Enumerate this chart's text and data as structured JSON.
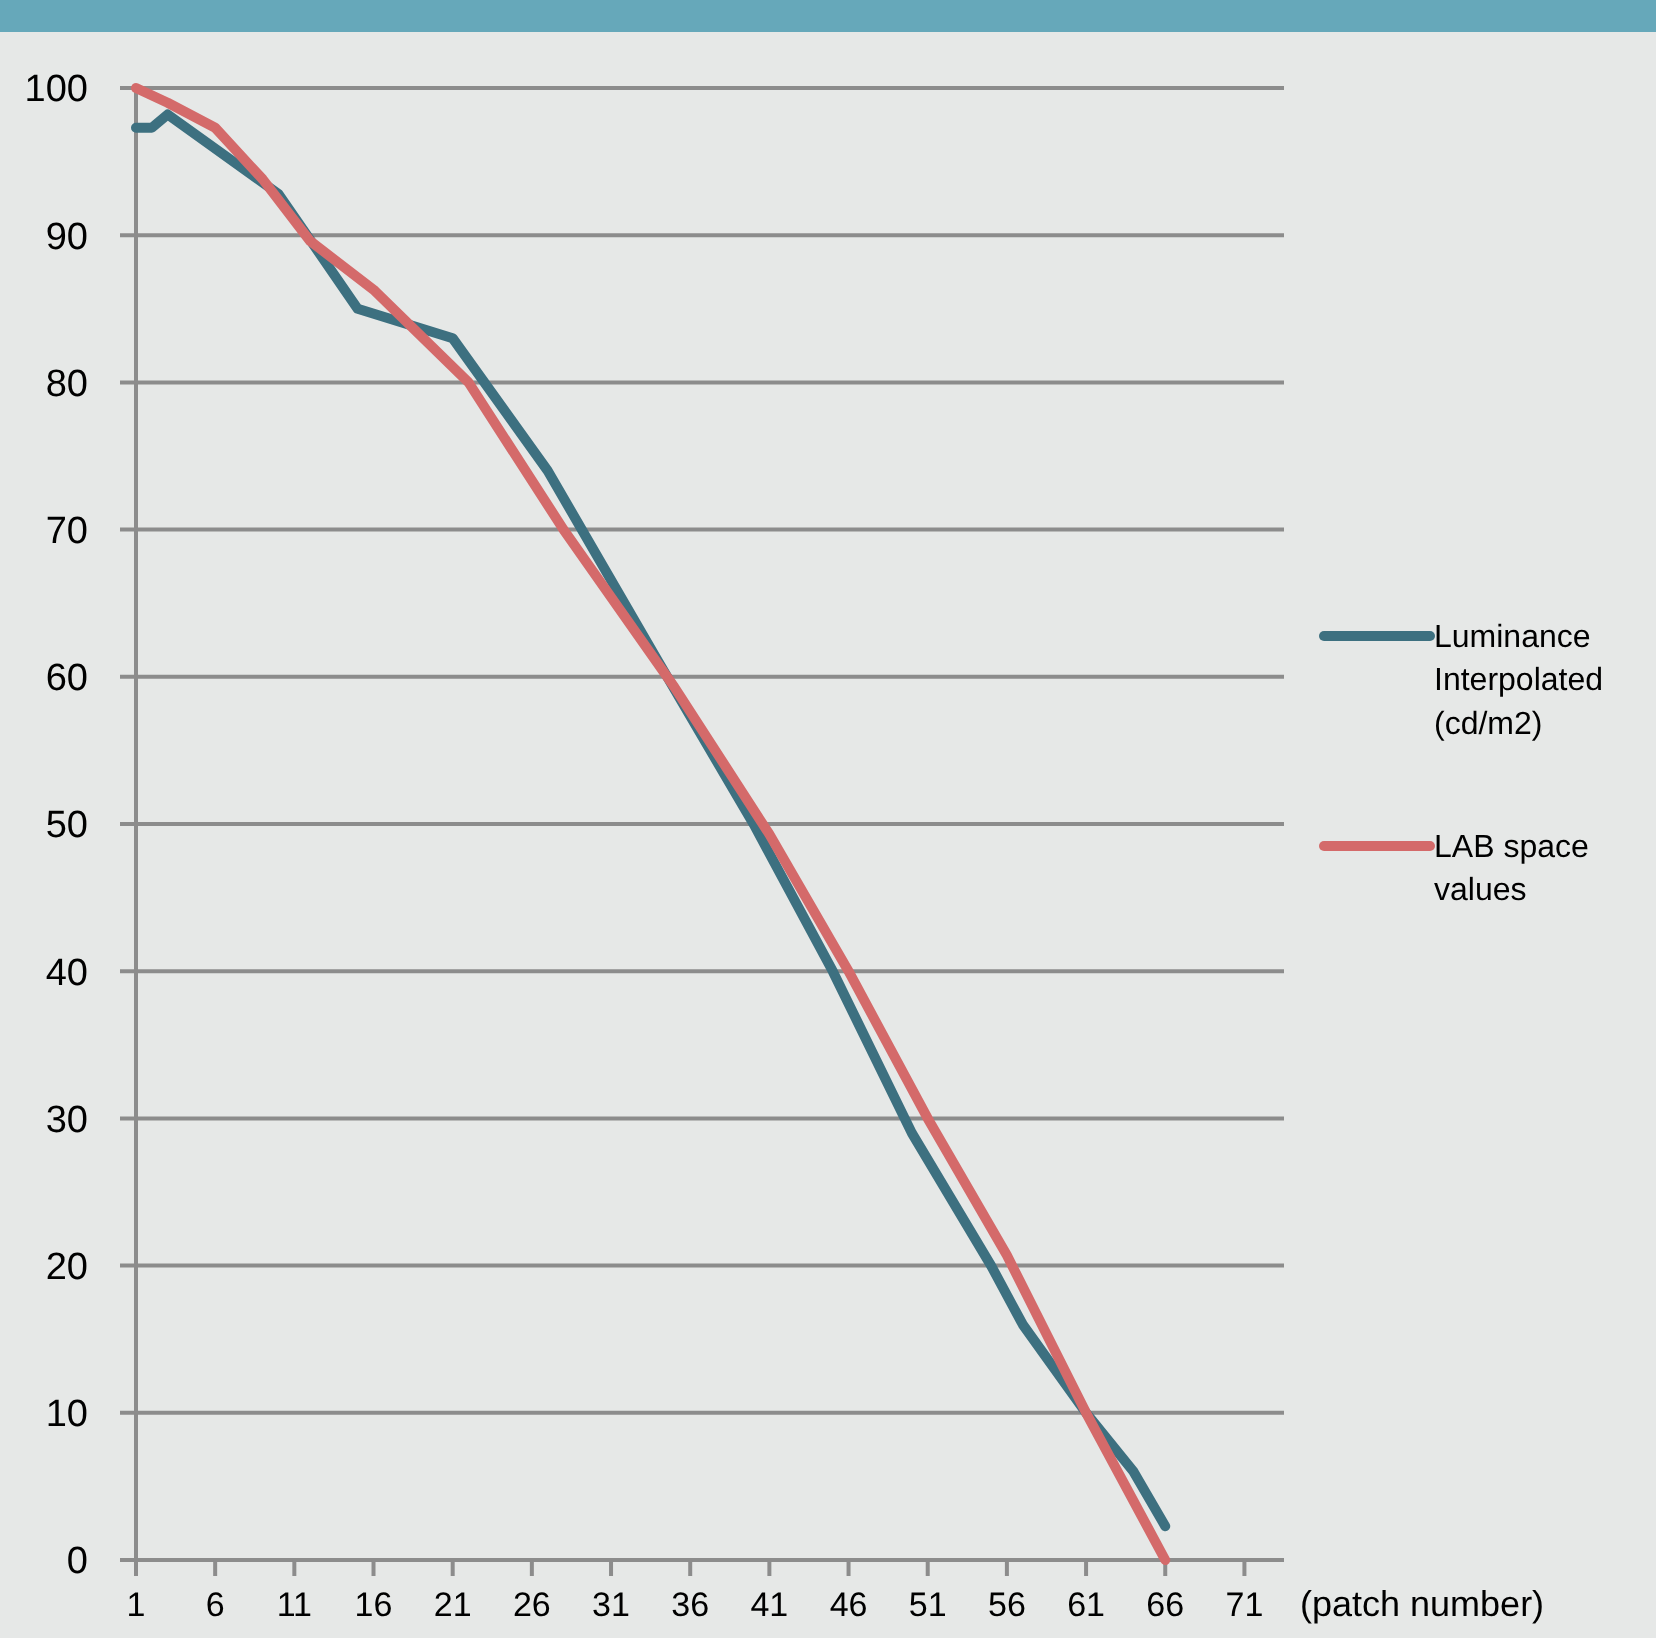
{
  "chart_data": {
    "type": "line",
    "xlabel": "(patch number)",
    "xlim": [
      1,
      73.5
    ],
    "xticks": [
      1,
      6,
      11,
      16,
      21,
      26,
      31,
      36,
      41,
      46,
      51,
      56,
      61,
      66,
      71
    ],
    "ylim": [
      0,
      100
    ],
    "yticks": [
      0,
      10,
      20,
      30,
      40,
      50,
      60,
      70,
      80,
      90,
      100
    ],
    "grid": "y",
    "legend": "right",
    "marker": "none",
    "line_style": "solid",
    "series": [
      {
        "name": "Luminance Interpolated (cd/m2)",
        "color": "#3d7080",
        "x": [
          1,
          2,
          3,
          10,
          15,
          21,
          27,
          34,
          40,
          45,
          50,
          55,
          57,
          61,
          64,
          66
        ],
        "values": [
          97.3,
          97.3,
          98.2,
          92.8,
          85,
          83,
          74,
          61,
          50,
          40,
          29,
          20,
          16,
          10,
          6,
          2.3
        ]
      },
      {
        "name": "LAB space values",
        "color": "#d46a6a",
        "x": [
          1,
          3,
          6,
          9,
          12,
          16,
          22,
          28,
          35,
          41,
          46,
          51,
          56,
          61,
          66
        ],
        "values": [
          100,
          99,
          97.3,
          93.8,
          89.6,
          86.3,
          80,
          70,
          59.3,
          49.3,
          40,
          30,
          20.7,
          10,
          0
        ]
      }
    ]
  }
}
